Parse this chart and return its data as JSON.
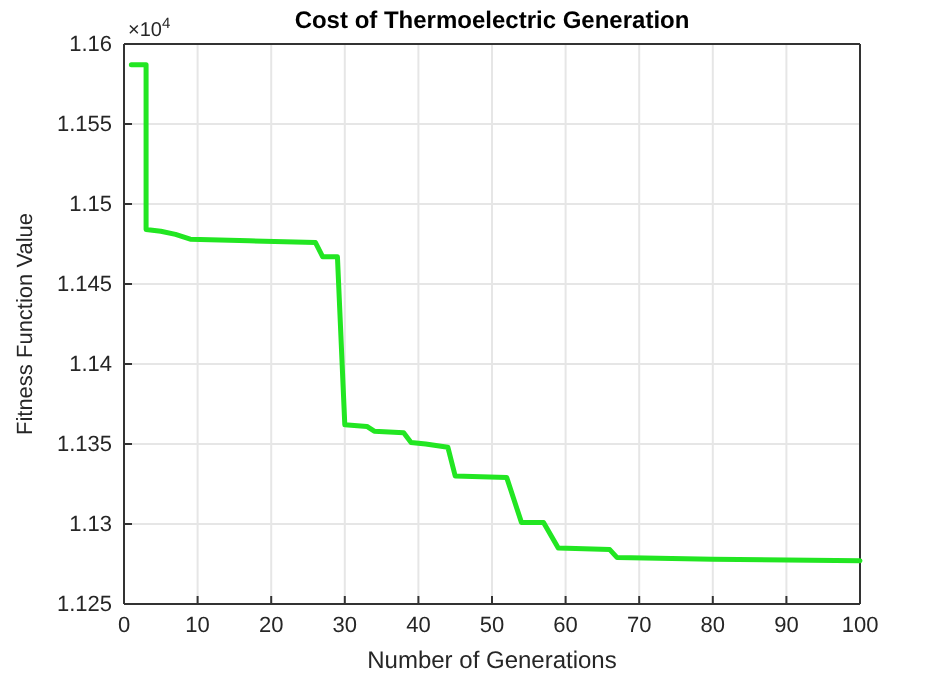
{
  "chart_data": {
    "type": "line",
    "title": "Cost of Thermoelectric Generation",
    "xlabel": "Number of Generations",
    "ylabel": "Fitness Function Value",
    "annotations": [
      "×10$^{4}$"
    ],
    "x": [
      1,
      3,
      3,
      5,
      7,
      9,
      17,
      26,
      27,
      29,
      30,
      33,
      34,
      38,
      39,
      41,
      44,
      45,
      52,
      53,
      54,
      57,
      59,
      66,
      67,
      80,
      100
    ],
    "series": [
      {
        "color": "#22e622",
        "values": [
          1.1587,
          1.1587,
          1.1484,
          1.1483,
          1.1481,
          1.1478,
          1.1477,
          1.1476,
          1.1467,
          1.1467,
          1.1362,
          1.1361,
          1.1358,
          1.1357,
          1.1351,
          1.135,
          1.1348,
          1.133,
          1.1329,
          1.1315,
          1.1301,
          1.1301,
          1.1285,
          1.1284,
          1.1279,
          1.1278,
          1.1277
        ]
      }
    ],
    "xlim": [
      0,
      100
    ],
    "xticks": [
      0,
      10,
      20,
      30,
      40,
      50,
      60,
      70,
      80,
      90,
      100
    ],
    "ylim": [
      1.125,
      1.16
    ],
    "yticks": [
      1.125,
      1.13,
      1.135,
      1.14,
      1.145,
      1.15,
      1.155,
      1.16
    ],
    "grid": true,
    "marker": "none",
    "line_style": "solid"
  }
}
